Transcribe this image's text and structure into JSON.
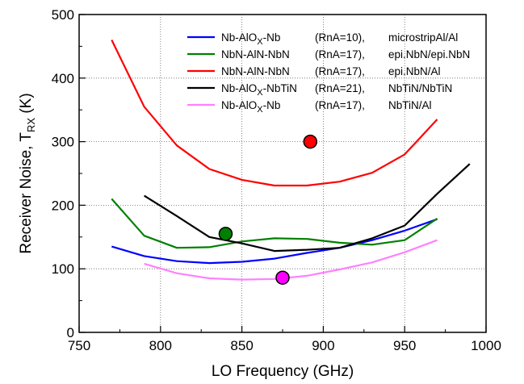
{
  "chart_data": {
    "type": "line",
    "title": "",
    "xlabel": "LO Frequency (GHz)",
    "ylabel": {
      "main": "Receiver Noise, T",
      "sub": "RX",
      "unit": " (K)"
    },
    "xlim": [
      750,
      1000
    ],
    "ylim": [
      0,
      500
    ],
    "xticks": [
      750,
      800,
      850,
      900,
      950,
      1000
    ],
    "yticks": [
      0,
      100,
      200,
      300,
      400,
      500
    ],
    "grid": true,
    "legend_position": "top-right",
    "series": [
      {
        "id": "blue",
        "color": "#0000ff",
        "legend": {
          "name": "Nb-AlO",
          "sub": "X",
          "rest": "-Nb",
          "rna": "(RnA=10),",
          "config": "microstripAl/Al"
        },
        "x": [
          770,
          790,
          810,
          830,
          850,
          870,
          890,
          910,
          930,
          950,
          970
        ],
        "y": [
          135,
          120,
          112,
          109,
          111,
          116,
          125,
          133,
          145,
          160,
          178
        ]
      },
      {
        "id": "green",
        "color": "#008000",
        "legend": {
          "name": "NbN-AlN-NbN",
          "sub": "",
          "rest": "",
          "rna": "(RnA=17),",
          "config": "epi.NbN/epi.NbN"
        },
        "x": [
          770,
          790,
          810,
          830,
          850,
          870,
          890,
          910,
          930,
          950,
          970
        ],
        "y": [
          210,
          152,
          133,
          134,
          143,
          148,
          147,
          141,
          138,
          145,
          179
        ]
      },
      {
        "id": "red",
        "color": "#ff0000",
        "legend": {
          "name": "NbN-AlN-NbN",
          "sub": "",
          "rest": "",
          "rna": "(RnA=17),",
          "config": "epi.NbN/Al"
        },
        "x": [
          770,
          790,
          810,
          830,
          850,
          870,
          890,
          910,
          930,
          950,
          970
        ],
        "y": [
          460,
          355,
          294,
          257,
          240,
          231,
          231,
          237,
          251,
          280,
          335
        ]
      },
      {
        "id": "black",
        "color": "#000000",
        "legend": {
          "name": "Nb-AlO",
          "sub": "X",
          "rest": "-NbTiN",
          "rna": "(RnA=21),",
          "config": "NbTiN/NbTiN"
        },
        "x": [
          790,
          810,
          830,
          850,
          870,
          890,
          910,
          930,
          950,
          970,
          990
        ],
        "y": [
          215,
          183,
          150,
          140,
          128,
          130,
          133,
          148,
          168,
          218,
          265
        ]
      },
      {
        "id": "pink",
        "color": "#ff80ff",
        "legend": {
          "name": "Nb-AlO",
          "sub": "X",
          "rest": "-Nb",
          "rna": "(RnA=17),",
          "config": "NbTiN/Al"
        },
        "x": [
          790,
          810,
          830,
          850,
          870,
          890,
          910,
          930,
          950,
          970
        ],
        "y": [
          108,
          93,
          85,
          83,
          84,
          89,
          99,
          110,
          126,
          145
        ]
      }
    ],
    "points": [
      {
        "id": "green-point",
        "x": 840,
        "y": 155,
        "color": "#008000"
      },
      {
        "id": "red-point",
        "x": 892,
        "y": 300,
        "color": "#ff0000"
      },
      {
        "id": "magenta-point",
        "x": 875,
        "y": 86,
        "color": "#ff00ff"
      }
    ]
  }
}
